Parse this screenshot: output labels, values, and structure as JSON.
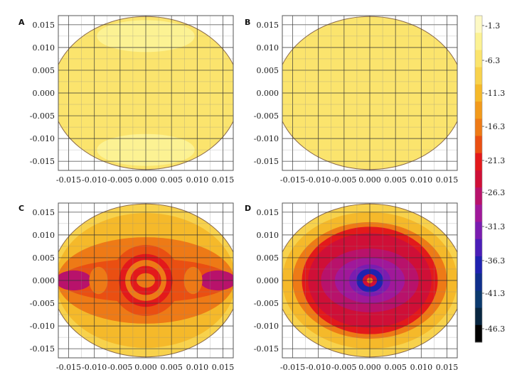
{
  "chart_data": {
    "type": "heatmap",
    "colorbar": {
      "ticks": [
        "-1.3",
        "-6.3",
        "-11.3",
        "-16.3",
        "-21.3",
        "-26.3",
        "-31.3",
        "-36.3",
        "-41.3",
        "-46.3"
      ],
      "stops": [
        {
          "v": -1.3,
          "color": "#fdf9c4"
        },
        {
          "v": -3.8,
          "color": "#fcf293"
        },
        {
          "v": -6.3,
          "color": "#fbe46d"
        },
        {
          "v": -8.8,
          "color": "#f8d24c"
        },
        {
          "v": -11.3,
          "color": "#f5b92a"
        },
        {
          "v": -13.8,
          "color": "#f29a1b"
        },
        {
          "v": -16.3,
          "color": "#ee7a16"
        },
        {
          "v": -18.8,
          "color": "#ea4f12"
        },
        {
          "v": -21.3,
          "color": "#e3191b"
        },
        {
          "v": -23.8,
          "color": "#cf0f37"
        },
        {
          "v": -26.3,
          "color": "#b8126b"
        },
        {
          "v": -28.8,
          "color": "#a0189a"
        },
        {
          "v": -31.3,
          "color": "#7a1cb0"
        },
        {
          "v": -33.8,
          "color": "#4a1eb8"
        },
        {
          "v": -36.3,
          "color": "#1f22b0"
        },
        {
          "v": -38.8,
          "color": "#0f2f8c"
        },
        {
          "v": -41.3,
          "color": "#0b3a6e"
        },
        {
          "v": -43.8,
          "color": "#082640"
        },
        {
          "v": -46.3,
          "color": "#020202"
        }
      ]
    },
    "axes": {
      "xlim": [
        -0.017,
        0.017
      ],
      "ylim": [
        -0.017,
        0.017
      ],
      "xticks": [
        "-0.015",
        "-0.010",
        "-0.005",
        "0.000",
        "0.005",
        "0.010",
        "0.015"
      ],
      "yticks": [
        "0.015",
        "0.010",
        "0.005",
        "0.000",
        "-0.005",
        "-0.010",
        "-0.015"
      ],
      "tick_values": [
        -0.015,
        -0.01,
        -0.005,
        0,
        0.005,
        0.01,
        0.015
      ],
      "grid": true,
      "domain_radius": [
        0.0183,
        0.0168
      ]
    },
    "panels": [
      {
        "label": "A",
        "field": [
          {
            "shape": "ellipse",
            "cx": 0,
            "cy": 0,
            "rx": 0.0183,
            "ry": 0.0168,
            "v": -5.5
          },
          {
            "shape": "ellipse",
            "cx": 0,
            "cy": 0.0125,
            "rx": 0.0095,
            "ry": 0.0035,
            "v": -3.5
          },
          {
            "shape": "ellipse",
            "cx": 0,
            "cy": -0.0125,
            "rx": 0.0095,
            "ry": 0.0035,
            "v": -3.5
          },
          {
            "shape": "ellipse",
            "cx": -0.0165,
            "cy": 0,
            "rx": 0.0035,
            "ry": 0.0065,
            "v": -7.5
          },
          {
            "shape": "ellipse",
            "cx": 0.0165,
            "cy": 0,
            "rx": 0.0035,
            "ry": 0.0065,
            "v": -7.5
          }
        ]
      },
      {
        "label": "B",
        "field": [
          {
            "shape": "ellipse",
            "cx": 0,
            "cy": 0,
            "rx": 0.0183,
            "ry": 0.0168,
            "v": -5.2
          },
          {
            "shape": "ellipse",
            "cx": -0.0115,
            "cy": 0.001,
            "rx": 0.0075,
            "ry": 0.0035,
            "v": -7.4
          },
          {
            "shape": "ellipse",
            "cx": 0.0115,
            "cy": 0.001,
            "rx": 0.0075,
            "ry": 0.0035,
            "v": -7.4
          },
          {
            "shape": "ellipse",
            "cx": 0,
            "cy": 0,
            "rx": 0.0055,
            "ry": 0.0028,
            "v": -6.6
          },
          {
            "shape": "ellipse",
            "cx": -0.007,
            "cy": -0.0045,
            "rx": 0.0045,
            "ry": 0.0022,
            "v": -6.8
          },
          {
            "shape": "ellipse",
            "cx": 0.007,
            "cy": -0.0045,
            "rx": 0.0045,
            "ry": 0.0022,
            "v": -6.8
          }
        ]
      },
      {
        "label": "C",
        "field": [
          {
            "shape": "ellipse",
            "cx": 0,
            "cy": 0,
            "rx": 0.0183,
            "ry": 0.0168,
            "v": -9.0
          },
          {
            "shape": "ellipse",
            "cx": 0,
            "cy": 0,
            "rx": 0.0175,
            "ry": 0.0148,
            "v": -12.5
          },
          {
            "shape": "ellipse",
            "cx": 0,
            "cy": 0,
            "rx": 0.0172,
            "ry": 0.0095,
            "v": -15.5
          },
          {
            "shape": "ellipse",
            "cx": 0,
            "cy": 0,
            "rx": 0.0168,
            "ry": 0.0048,
            "v": -19.5
          },
          {
            "shape": "ellipse",
            "cx": 0,
            "cy": 0,
            "rx": 0.0068,
            "ry": 0.0078,
            "v": -18.0
          },
          {
            "shape": "ellipse",
            "cx": 0,
            "cy": 0,
            "rx": 0.0052,
            "ry": 0.0058,
            "v": -21.0
          },
          {
            "shape": "ellipse",
            "cx": 0,
            "cy": 0,
            "rx": 0.004,
            "ry": 0.0045,
            "v": -16.5
          },
          {
            "shape": "ellipse",
            "cx": 0,
            "cy": 0,
            "rx": 0.003,
            "ry": 0.0032,
            "v": -21.0
          },
          {
            "shape": "ellipse",
            "cx": 0,
            "cy": 0,
            "rx": 0.0018,
            "ry": 0.0016,
            "v": -15.5
          },
          {
            "shape": "ellipse",
            "cx": -0.014,
            "cy": 0,
            "rx": 0.0035,
            "ry": 0.0022,
            "v": -26.0
          },
          {
            "shape": "ellipse",
            "cx": 0.014,
            "cy": 0,
            "rx": 0.0035,
            "ry": 0.0022,
            "v": -26.0
          },
          {
            "shape": "ellipse",
            "cx": -0.0092,
            "cy": 0,
            "rx": 0.0018,
            "ry": 0.003,
            "v": -17.0
          },
          {
            "shape": "ellipse",
            "cx": 0.0092,
            "cy": 0,
            "rx": 0.0018,
            "ry": 0.003,
            "v": -17.0
          }
        ]
      },
      {
        "label": "D",
        "field": [
          {
            "shape": "ellipse",
            "cx": 0,
            "cy": 0,
            "rx": 0.0183,
            "ry": 0.0168,
            "v": -9.0
          },
          {
            "shape": "ellipse",
            "cx": 0,
            "cy": 0,
            "rx": 0.017,
            "ry": 0.015,
            "v": -12.0
          },
          {
            "shape": "ellipse",
            "cx": 0,
            "cy": 0,
            "rx": 0.015,
            "ry": 0.0128,
            "v": -16.0
          },
          {
            "shape": "ellipse",
            "cx": 0,
            "cy": 0,
            "rx": 0.0132,
            "ry": 0.0118,
            "v": -20.5
          },
          {
            "shape": "ellipse",
            "cx": 0,
            "cy": 0,
            "rx": 0.012,
            "ry": 0.0104,
            "v": -23.0
          },
          {
            "shape": "ellipse",
            "cx": 0,
            "cy": 0,
            "rx": 0.0095,
            "ry": 0.007,
            "v": -25.5
          },
          {
            "shape": "ellipse",
            "cx": 0,
            "cy": 0,
            "rx": 0.0068,
            "ry": 0.005,
            "v": -28.5
          },
          {
            "shape": "ellipse",
            "cx": 0,
            "cy": 0,
            "rx": 0.004,
            "ry": 0.0035,
            "v": -32.0
          },
          {
            "shape": "ellipse",
            "cx": 0,
            "cy": 0,
            "rx": 0.0026,
            "ry": 0.0026,
            "v": -37.0
          },
          {
            "shape": "ellipse",
            "cx": 0,
            "cy": 0,
            "rx": 0.0014,
            "ry": 0.0014,
            "v": -24.0
          },
          {
            "shape": "ellipse",
            "cx": 0,
            "cy": 0,
            "rx": 0.0006,
            "ry": 0.0006,
            "v": -16.0
          }
        ]
      }
    ]
  }
}
